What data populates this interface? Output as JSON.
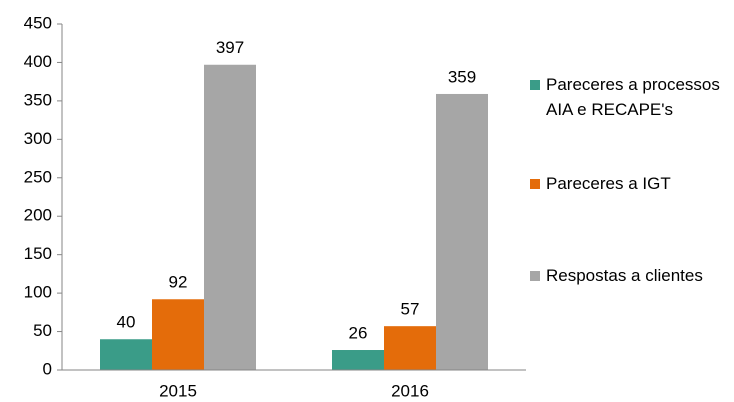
{
  "chart_data": {
    "type": "bar",
    "categories": [
      "2015",
      "2016"
    ],
    "series": [
      {
        "name": "Pareceres a processos AIA e RECAPE's",
        "color": "#3a9c88",
        "values": [
          40,
          26
        ]
      },
      {
        "name": "Pareceres a IGT",
        "color": "#e46c0a",
        "values": [
          92,
          57
        ]
      },
      {
        "name": "Respostas a clientes",
        "color": "#a6a6a6",
        "values": [
          397,
          359
        ]
      }
    ],
    "ylim": [
      0,
      450
    ],
    "yticks": [
      0,
      50,
      100,
      150,
      200,
      250,
      300,
      350,
      400,
      450
    ],
    "grid": false,
    "legend": "right",
    "data_labels": true
  }
}
